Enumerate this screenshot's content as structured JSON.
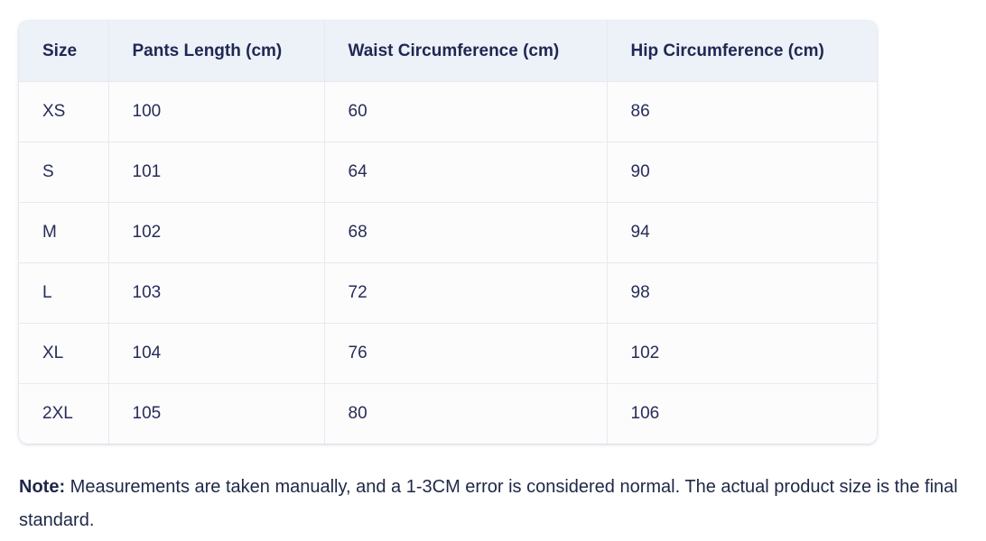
{
  "table": {
    "columns": [
      "Size",
      "Pants Length (cm)",
      "Waist Circumference (cm)",
      "Hip Circumference (cm)"
    ],
    "rows": [
      [
        "XS",
        "100",
        "60",
        "86"
      ],
      [
        "S",
        "101",
        "64",
        "90"
      ],
      [
        "M",
        "102",
        "68",
        "94"
      ],
      [
        "L",
        "103",
        "72",
        "98"
      ],
      [
        "XL",
        "104",
        "76",
        "102"
      ],
      [
        "2XL",
        "105",
        "80",
        "106"
      ]
    ]
  },
  "chart_data": {
    "type": "table",
    "title": "",
    "columns": [
      "Size",
      "Pants Length (cm)",
      "Waist Circumference (cm)",
      "Hip Circumference (cm)"
    ],
    "rows": [
      [
        "XS",
        100,
        60,
        86
      ],
      [
        "S",
        101,
        64,
        90
      ],
      [
        "M",
        102,
        68,
        94
      ],
      [
        "L",
        103,
        72,
        98
      ],
      [
        "XL",
        104,
        76,
        102
      ],
      [
        "2XL",
        105,
        80,
        106
      ]
    ]
  },
  "note": {
    "label": "Note:",
    "text": " Measurements are taken manually, and a 1-3CM error is considered normal. The actual product size is the final standard."
  },
  "colors": {
    "header_bg": "#edf1f8",
    "body_bg": "#fcfcfd",
    "divider": "#e7e9ef",
    "header_text": "#1f2852",
    "body_text": "#272c58"
  }
}
